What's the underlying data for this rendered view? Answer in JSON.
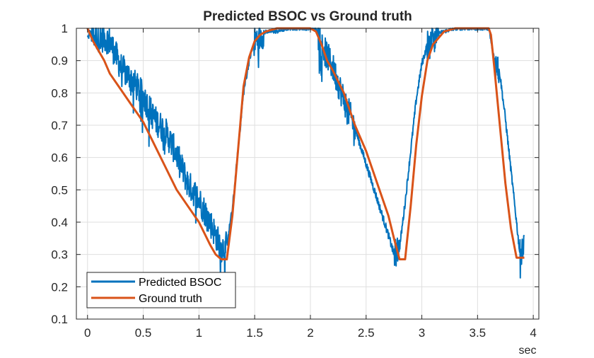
{
  "chart_data": {
    "type": "line",
    "title": "Predicted BSOC vs Ground truth",
    "xlabel": "sec",
    "ylabel": "",
    "xlim": [
      -0.1,
      4.05
    ],
    "ylim": [
      0.1,
      1.0
    ],
    "xticks": [
      0,
      0.5,
      1,
      1.5,
      2,
      2.5,
      3,
      3.5,
      4
    ],
    "xtick_labels": [
      "0",
      "0.5",
      "1",
      "1.5",
      "2",
      "2.5",
      "3",
      "3.5",
      "4"
    ],
    "yticks": [
      0.1,
      0.2,
      0.3,
      0.4,
      0.5,
      0.6,
      0.7,
      0.8,
      0.9,
      1.0
    ],
    "ytick_labels": [
      "0.1",
      "0.2",
      "0.3",
      "0.4",
      "0.5",
      "0.6",
      "0.7",
      "0.8",
      "0.9",
      "1"
    ],
    "grid": true,
    "legend_position": "bottom-left",
    "series": [
      {
        "name": "Predicted BSOC",
        "color": "#0072BD",
        "noisy": true,
        "x": [
          0,
          0.02,
          0.05,
          0.1,
          0.15,
          0.2,
          0.3,
          0.4,
          0.5,
          0.6,
          0.7,
          0.8,
          0.9,
          1.0,
          1.1,
          1.2,
          1.25,
          1.3,
          1.35,
          1.4,
          1.45,
          1.5,
          1.6,
          1.7,
          1.8,
          1.9,
          2.0,
          2.05,
          2.1,
          2.2,
          2.3,
          2.4,
          2.5,
          2.6,
          2.7,
          2.75,
          2.8,
          2.85,
          2.9,
          2.95,
          3.0,
          3.05,
          3.1,
          3.2,
          3.3,
          3.4,
          3.5,
          3.6,
          3.65,
          3.7,
          3.75,
          3.8,
          3.85,
          3.88,
          3.92
        ],
        "y": [
          0.96,
          0.99,
          0.98,
          0.97,
          0.97,
          0.96,
          0.88,
          0.84,
          0.79,
          0.72,
          0.68,
          0.61,
          0.52,
          0.47,
          0.4,
          0.32,
          0.33,
          0.44,
          0.62,
          0.8,
          0.9,
          0.96,
          0.99,
          0.99,
          1.0,
          1.0,
          1.0,
          1.0,
          0.95,
          0.88,
          0.78,
          0.69,
          0.58,
          0.47,
          0.36,
          0.3,
          0.32,
          0.46,
          0.62,
          0.78,
          0.89,
          0.95,
          0.98,
          0.99,
          1.0,
          1.0,
          1.0,
          1.0,
          0.9,
          0.86,
          0.72,
          0.56,
          0.4,
          0.3,
          0.34
        ]
      },
      {
        "name": "Ground truth",
        "color": "#D95319",
        "noisy": false,
        "x": [
          0,
          0.05,
          0.1,
          0.15,
          0.2,
          0.3,
          0.4,
          0.5,
          0.6,
          0.7,
          0.8,
          0.9,
          1.0,
          1.1,
          1.15,
          1.2,
          1.25,
          1.3,
          1.35,
          1.4,
          1.45,
          1.5,
          1.55,
          1.6,
          1.7,
          1.8,
          1.9,
          2.0,
          2.05,
          2.1,
          2.15,
          2.2,
          2.3,
          2.4,
          2.5,
          2.6,
          2.7,
          2.75,
          2.8,
          2.85,
          2.9,
          2.95,
          3.0,
          3.05,
          3.1,
          3.2,
          3.3,
          3.4,
          3.5,
          3.6,
          3.62,
          3.65,
          3.7,
          3.75,
          3.8,
          3.85,
          3.88,
          3.92
        ],
        "y": [
          1.0,
          0.96,
          0.93,
          0.9,
          0.86,
          0.81,
          0.76,
          0.71,
          0.64,
          0.57,
          0.5,
          0.45,
          0.4,
          0.33,
          0.3,
          0.285,
          0.285,
          0.42,
          0.62,
          0.82,
          0.91,
          0.96,
          0.98,
          0.99,
          1.0,
          1.0,
          1.0,
          1.0,
          0.99,
          0.95,
          0.9,
          0.87,
          0.8,
          0.7,
          0.62,
          0.52,
          0.42,
          0.35,
          0.285,
          0.285,
          0.45,
          0.64,
          0.79,
          0.9,
          0.95,
          0.99,
          1.0,
          1.0,
          1.0,
          1.0,
          0.98,
          0.88,
          0.7,
          0.52,
          0.38,
          0.29,
          0.29,
          0.29
        ]
      }
    ]
  }
}
